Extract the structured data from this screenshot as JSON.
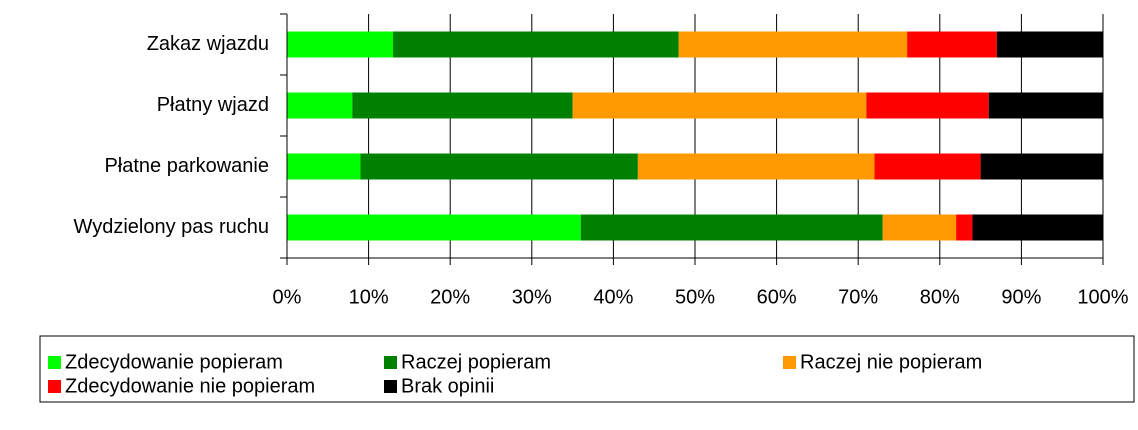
{
  "chart_data": {
    "type": "stacked-bar-horizontal",
    "categories": [
      "Zakaz wjazdu",
      "Płatny wjazd",
      "Płatne parkowanie",
      "Wydzielony pas ruchu"
    ],
    "series": [
      {
        "name": "Zdecydowanie popieram",
        "color": "#00ff00",
        "values": [
          13,
          8,
          9,
          36
        ]
      },
      {
        "name": "Raczej popieram",
        "color": "#008000",
        "values": [
          35,
          27,
          34,
          37
        ]
      },
      {
        "name": "Raczej nie popieram",
        "color": "#ff9900",
        "values": [
          28,
          36,
          29,
          9
        ]
      },
      {
        "name": "Zdecydowanie nie popieram",
        "color": "#ff0000",
        "values": [
          11,
          15,
          13,
          2
        ]
      },
      {
        "name": "Brak opinii",
        "color": "#000000",
        "values": [
          13,
          14,
          15,
          16
        ]
      }
    ],
    "xlim": [
      0,
      100
    ],
    "xticks": [
      {
        "value": 0,
        "label": "0%"
      },
      {
        "value": 10,
        "label": "10%"
      },
      {
        "value": 20,
        "label": "20%"
      },
      {
        "value": 30,
        "label": "30%"
      },
      {
        "value": 40,
        "label": "40%"
      },
      {
        "value": 50,
        "label": "50%"
      },
      {
        "value": 60,
        "label": "60%"
      },
      {
        "value": 70,
        "label": "70%"
      },
      {
        "value": 80,
        "label": "80%"
      },
      {
        "value": 90,
        "label": "90%"
      },
      {
        "value": 100,
        "label": "100%"
      }
    ],
    "grid": true,
    "legend": "bottom"
  }
}
